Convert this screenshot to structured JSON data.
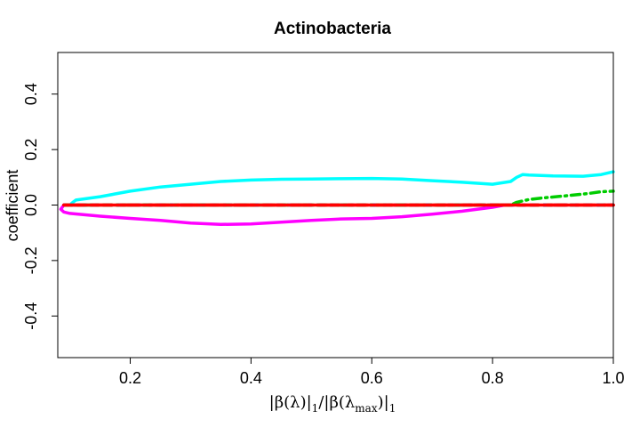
{
  "chart_data": {
    "type": "line",
    "title": "Actinobacteria",
    "xlabel": "|β(λ)|1/|β(λmax)|1",
    "xlabel_parts": {
      "a": "|β(λ)|",
      "sub1": "1",
      "b": "/|β(λ",
      "sub2": "max",
      "c": ")|",
      "sub3": "1"
    },
    "ylabel": "coefficient",
    "xlim": [
      0.08,
      1.0
    ],
    "ylim": [
      -0.55,
      0.55
    ],
    "x_ticks": [
      0.2,
      0.4,
      0.6,
      0.8,
      1.0
    ],
    "x_tick_labels": [
      "0.2",
      "0.4",
      "0.6",
      "0.8",
      "1.0"
    ],
    "y_ticks": [
      -0.4,
      -0.2,
      0.0,
      0.2,
      0.4
    ],
    "y_tick_labels": [
      "-0.4",
      "-0.2",
      "0.0",
      "0.2",
      "0.4"
    ],
    "grid": false,
    "legend": "none",
    "series": [
      {
        "color": "#000000",
        "dash": "9,6",
        "x": [
          0.09,
          1.0
        ],
        "y": [
          0.0,
          0.0
        ]
      },
      {
        "color": "#2222ff",
        "dash": "2,10",
        "x": [
          0.09,
          1.0
        ],
        "y": [
          0.0,
          0.0
        ]
      },
      {
        "color": "#00cc00",
        "dash": "10,5,2,5",
        "x": [
          0.09,
          0.83,
          0.84,
          0.86,
          0.88,
          0.92,
          0.96,
          0.98,
          1.0
        ],
        "y": [
          0.0,
          0.0,
          0.01,
          0.02,
          0.025,
          0.033,
          0.042,
          0.048,
          0.05
        ]
      },
      {
        "color": "#ff00ff",
        "dash": "",
        "x": [
          0.09,
          0.085,
          0.09,
          0.1,
          0.15,
          0.2,
          0.25,
          0.3,
          0.35,
          0.4,
          0.45,
          0.5,
          0.55,
          0.6,
          0.65,
          0.7,
          0.75,
          0.8,
          0.82
        ],
        "y": [
          0.0,
          -0.015,
          -0.025,
          -0.03,
          -0.04,
          -0.048,
          -0.055,
          -0.065,
          -0.07,
          -0.068,
          -0.062,
          -0.055,
          -0.05,
          -0.048,
          -0.042,
          -0.033,
          -0.022,
          -0.008,
          0.0
        ]
      },
      {
        "color": "#00ffff",
        "dash": "",
        "x": [
          0.1,
          0.105,
          0.11,
          0.15,
          0.2,
          0.25,
          0.3,
          0.35,
          0.4,
          0.45,
          0.5,
          0.55,
          0.6,
          0.65,
          0.7,
          0.75,
          0.8,
          0.83,
          0.84,
          0.85,
          0.86,
          0.9,
          0.95,
          0.98,
          1.0
        ],
        "y": [
          0.0,
          0.01,
          0.018,
          0.03,
          0.05,
          0.065,
          0.075,
          0.085,
          0.09,
          0.093,
          0.094,
          0.095,
          0.096,
          0.094,
          0.088,
          0.082,
          0.075,
          0.085,
          0.1,
          0.11,
          0.108,
          0.105,
          0.104,
          0.11,
          0.12
        ]
      },
      {
        "color": "#ff0000",
        "dash": "",
        "x": [
          0.09,
          1.0
        ],
        "y": [
          0.0,
          0.0
        ]
      },
      {
        "color": "#ff0000",
        "dash": "22,10",
        "x": [
          0.09,
          1.0
        ],
        "y": [
          0.0,
          0.0
        ]
      }
    ]
  }
}
